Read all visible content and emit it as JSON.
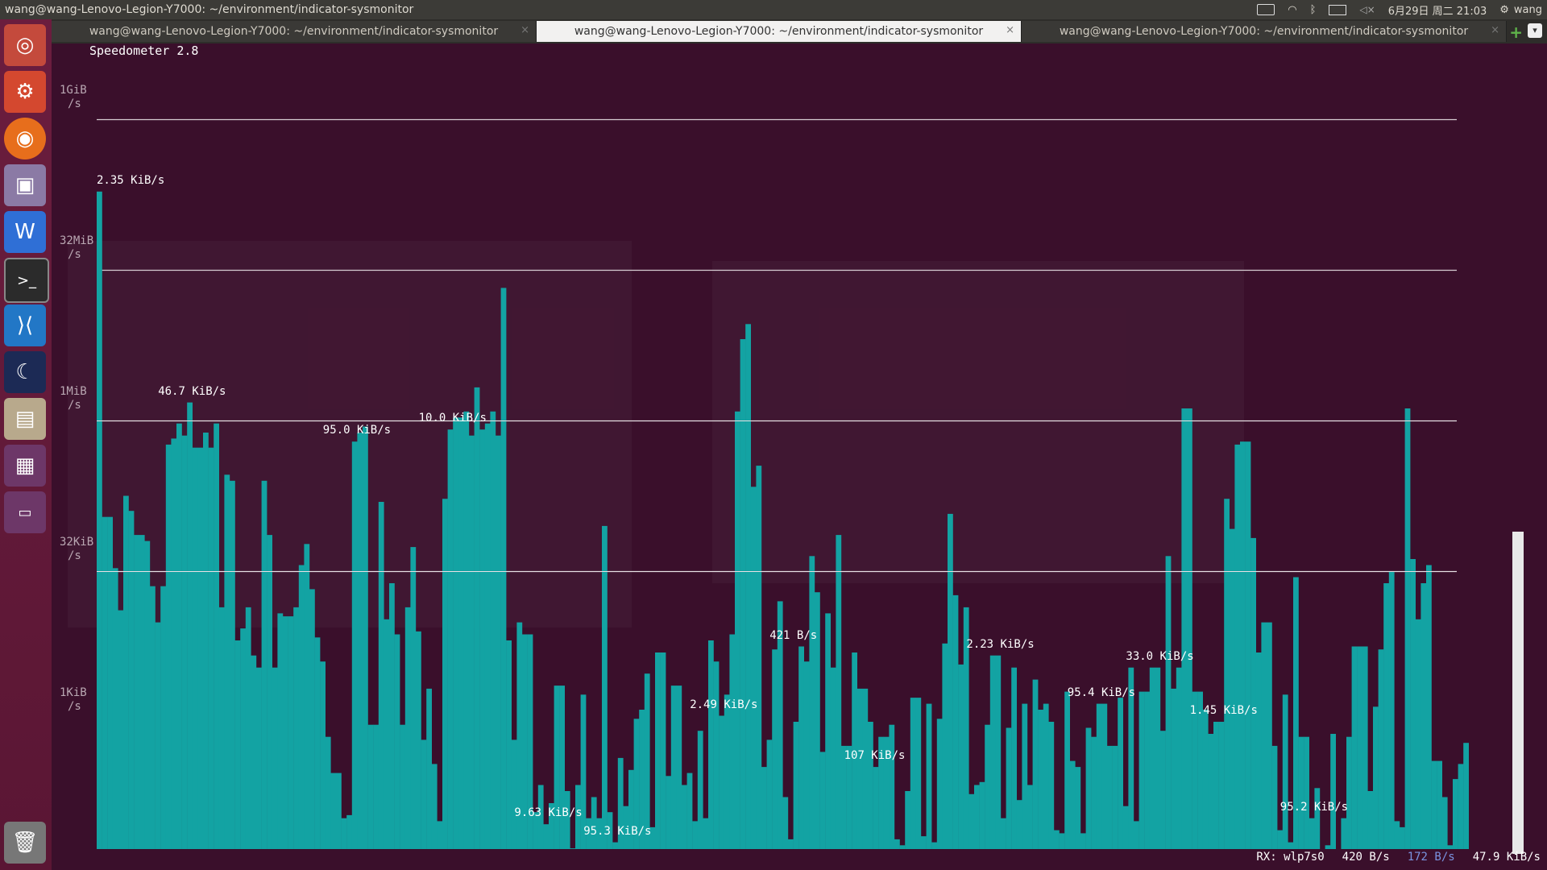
{
  "panel": {
    "title": "wang@wang-Lenovo-Legion-Y7000: ~/environment/indicator-sysmonitor",
    "datetime": "6月29日 周二 21:03",
    "user": "wang"
  },
  "tabs": [
    {
      "label": "wang@wang-Lenovo-Legion-Y7000: ~/environment/indicator-sysmonitor",
      "active": false
    },
    {
      "label": "wang@wang-Lenovo-Legion-Y7000: ~/environment/indicator-sysmonitor",
      "active": true
    },
    {
      "label": "wang@wang-Lenovo-Legion-Y7000: ~/environment/indicator-sysmonitor",
      "active": false
    }
  ],
  "tab_close": "×",
  "tab_add": "+",
  "tab_menu": "▾",
  "app": {
    "title": "Speedometer 2.8"
  },
  "y_axis": {
    "labels": [
      {
        "value": "1GiB",
        "unit": "/s"
      },
      {
        "value": "32MiB",
        "unit": "/s"
      },
      {
        "value": "1MiB",
        "unit": "/s"
      },
      {
        "value": "32KiB",
        "unit": "/s"
      },
      {
        "value": "1KiB",
        "unit": "/s"
      }
    ],
    "scale": "log"
  },
  "chart_data": {
    "type": "bar",
    "title": "",
    "series_color": "#13a3a3",
    "unit": "log2(B/s)",
    "values": [
      22.6,
      11.8,
      11.8,
      10.1,
      8.7,
      12.5,
      12.0,
      11.2,
      11.2,
      11.0,
      9.5,
      8.3,
      9.5,
      14.2,
      14.4,
      14.9,
      14.5,
      15.6,
      14.1,
      14.1,
      14.6,
      14.1,
      14.9,
      8.8,
      13.2,
      13.0,
      7.7,
      8.1,
      8.8,
      7.2,
      6.8,
      13.0,
      11.2,
      6.8,
      8.6,
      8.5,
      8.5,
      8.8,
      10.2,
      10.9,
      9.4,
      7.8,
      7.0,
      4.5,
      3.3,
      3.3,
      1.8,
      1.9,
      14.3,
      14.6,
      14.8,
      4.9,
      4.9,
      12.3,
      8.4,
      9.6,
      7.9,
      4.9,
      8.8,
      10.8,
      8.0,
      4.4,
      6.1,
      3.6,
      1.7,
      12.4,
      14.7,
      15.1,
      15.1,
      15.3,
      14.5,
      16.1,
      14.7,
      14.9,
      15.3,
      14.5,
      19.4,
      7.7,
      4.4,
      8.3,
      7.9,
      7.9,
      2.0,
      2.9,
      1.6,
      2.3,
      6.2,
      6.2,
      2.7,
      0.8,
      2.9,
      5.9,
      1.8,
      2.5,
      1.8,
      11.5,
      2.0,
      1.0,
      3.8,
      2.2,
      3.4,
      5.1,
      5.4,
      6.6,
      1.5,
      7.3,
      7.3,
      3.2,
      6.2,
      6.2,
      2.9,
      3.3,
      1.7,
      4.7,
      1.8,
      7.7,
      7.0,
      5.2,
      5.9,
      7.9,
      15.3,
      17.7,
      18.2,
      12.8,
      13.5,
      3.5,
      4.4,
      7.4,
      9.0,
      2.5,
      1.1,
      5.0,
      7.5,
      7.0,
      10.5,
      9.3,
      4.0,
      8.6,
      6.8,
      11.2,
      4.2,
      4.2,
      7.3,
      6.1,
      6.1,
      5.0,
      3.5,
      4.5,
      4.5,
      4.9,
      1.1,
      0.9,
      2.7,
      5.8,
      5.8,
      1.2,
      5.6,
      1.0,
      5.1,
      7.6,
      11.9,
      9.2,
      6.9,
      8.8,
      2.6,
      2.9,
      3.0,
      4.9,
      7.2,
      7.2,
      1.8,
      4.8,
      6.8,
      2.4,
      5.6,
      2.9,
      6.4,
      5.4,
      5.6,
      5.0,
      1.4,
      1.3,
      6.0,
      3.7,
      3.5,
      1.3,
      4.8,
      4.5,
      5.6,
      5.6,
      4.2,
      4.2,
      5.8,
      2.2,
      6.8,
      1.7,
      6.0,
      6.0,
      6.8,
      6.8,
      4.7,
      10.5,
      6.1,
      6.8,
      15.4,
      15.4,
      6.0,
      6.0,
      5.4,
      4.6,
      5.0,
      5.0,
      12.4,
      11.4,
      14.2,
      14.3,
      14.3,
      11.1,
      7.3,
      8.3,
      8.3,
      4.2,
      1.4,
      5.9,
      1.0,
      9.8,
      4.5,
      4.5,
      1.8,
      2.8,
      0.6,
      0.9,
      4.6,
      0.5,
      1.8,
      4.5,
      7.5,
      7.5,
      7.5,
      2.7,
      5.5,
      7.4,
      9.6,
      10.0,
      1.7,
      1.5,
      15.4,
      10.4,
      8.4,
      9.6,
      10.2,
      3.7,
      3.7,
      2.5,
      0.9,
      3.1,
      3.6,
      4.3
    ],
    "peak_labels": [
      {
        "text": "2.35 KiB/s",
        "bar": 0
      },
      {
        "text": "46.7 KiB/s",
        "bar": 17
      },
      {
        "text": "95.0 KiB/s",
        "bar": 48
      },
      {
        "text": "10.0 KiB/s",
        "bar": 66
      },
      {
        "text": "9.63 KiB/s",
        "bar": 84
      },
      {
        "text": "95.3 KiB/s",
        "bar": 97
      },
      {
        "text": "2.49 KiB/s",
        "bar": 117
      },
      {
        "text": "421 B/s",
        "bar": 132
      },
      {
        "text": "107 KiB/s",
        "bar": 146
      },
      {
        "text": "2.23 KiB/s",
        "bar": 169
      },
      {
        "text": "95.4 KiB/s",
        "bar": 188
      },
      {
        "text": "33.0 KiB/s",
        "bar": 199
      },
      {
        "text": "1.45 KiB/s",
        "bar": 211
      },
      {
        "text": "95.2 KiB/s",
        "bar": 228
      }
    ]
  },
  "status": {
    "interface": "RX: wlp7s0",
    "rx_current": "420 B/s",
    "tx_current": "172 B/s",
    "total": "47.9 KiB/s"
  }
}
